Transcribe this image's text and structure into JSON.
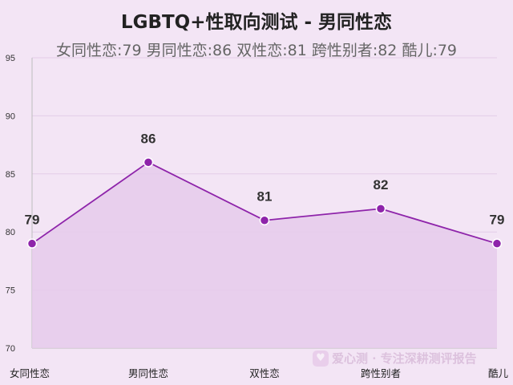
{
  "chart_data": {
    "type": "area",
    "title": "LGBTQ+性取向测试 - 男同性恋",
    "subtitle": "女同性恋:79 男同性恋:86 双性恋:81 跨性别者:82 酷儿:79",
    "categories": [
      "女同性恋",
      "男同性恋",
      "双性恋",
      "跨性别者",
      "酷儿"
    ],
    "values": [
      79,
      86,
      81,
      82,
      79
    ],
    "data_labels": [
      "79",
      "86",
      "81",
      "82",
      "79"
    ],
    "xlabel": "",
    "ylabel": "",
    "ylim": [
      70,
      95
    ],
    "yticks": [
      70,
      75,
      80,
      85,
      90,
      95
    ],
    "ytick_labels": [
      "70",
      "75",
      "80",
      "85",
      "90",
      "95"
    ],
    "grid": true,
    "legend": "none",
    "colors": {
      "line": "#8e24aa",
      "fill": "#e5cbeb",
      "marker": "#8e24aa",
      "marker_stroke": "#ffffff",
      "background": "#f3e5f5",
      "grid": "#e3cde8",
      "axis": "#bdbdbd"
    }
  },
  "watermark": {
    "icon": "heart-icon",
    "text": "爱心测 · 专注深耕测评报告"
  }
}
